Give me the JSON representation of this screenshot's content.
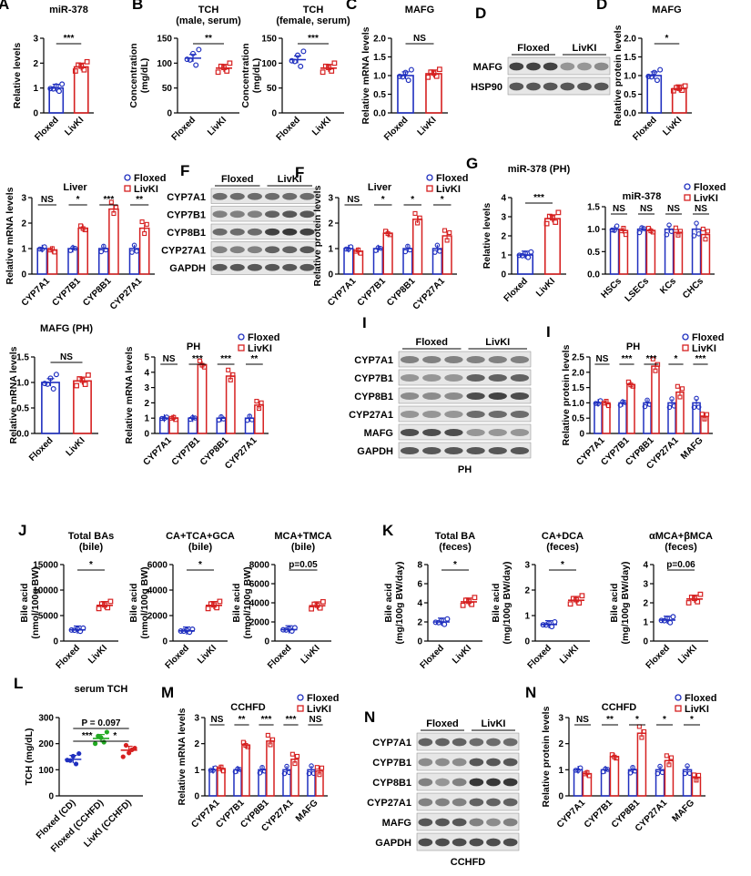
{
  "colors": {
    "floxed": "#1f2fbf",
    "livki": "#d62020",
    "cd": "#1f2fbf",
    "cchfd_floxed": "#22aa22",
    "cchfd_livki": "#d62020"
  },
  "legend": {
    "floxed": "Floxed",
    "livki": "LivKI"
  },
  "chart_data": [
    {
      "id": "A",
      "label": "A",
      "type": "bar",
      "title": "miR-378",
      "ylabel": "Relative levels",
      "ylim": [
        0,
        3
      ],
      "yticks": [
        "0",
        "1",
        "2",
        "3"
      ],
      "categories": [
        "Floxed",
        "LivKI"
      ],
      "values": [
        1.0,
        1.85
      ],
      "sig": [
        {
          "text": "***",
          "a": 0,
          "b": 1
        }
      ]
    },
    {
      "id": "B1",
      "label": "B",
      "type": "scatter",
      "title": "TCH\n(male, serum)",
      "ylabel": "Concentration\n(mg/dL)",
      "ylim": [
        0,
        150
      ],
      "yticks": [
        "0",
        "50",
        "100",
        "150"
      ],
      "categories": [
        "Floxed",
        "LivKI"
      ],
      "values": [
        110,
        90
      ],
      "sig": [
        {
          "text": "**",
          "a": 0,
          "b": 1
        }
      ]
    },
    {
      "id": "B2",
      "type": "scatter",
      "title": "TCH\n(female, serum)",
      "ylabel": "Concentration\n(mg/dL)",
      "ylim": [
        0,
        150
      ],
      "yticks": [
        "0",
        "50",
        "100",
        "150"
      ],
      "categories": [
        "Floxed",
        "LivKI"
      ],
      "values": [
        107,
        90
      ],
      "sig": [
        {
          "text": "***",
          "a": 0,
          "b": 1
        }
      ]
    },
    {
      "id": "C",
      "label": "C",
      "type": "bar",
      "title": "MAFG",
      "ylabel": "Relative mRNA levels",
      "ylim": [
        0,
        2.0
      ],
      "yticks": [
        "0.0",
        "0.5",
        "1.0",
        "1.5",
        "2.0"
      ],
      "categories": [
        "Floxed",
        "LivKI"
      ],
      "values": [
        1.0,
        1.05
      ],
      "sig": [
        {
          "text": "NS",
          "a": 0,
          "b": 1
        }
      ]
    },
    {
      "id": "D",
      "label": "D",
      "type": "bar",
      "title": "MAFG",
      "ylabel": "Relative protein levels",
      "ylim": [
        0,
        2.0
      ],
      "yticks": [
        "0.0",
        "0.5",
        "1.0",
        "1.5",
        "2.0"
      ],
      "categories": [
        "Floxed",
        "LivKI"
      ],
      "values": [
        1.0,
        0.65
      ],
      "sig": [
        {
          "text": "*",
          "a": 0,
          "b": 1
        }
      ]
    },
    {
      "id": "E",
      "label": "E",
      "type": "bar",
      "title": "Liver",
      "ylabel": "Relative mRNA levels",
      "ylim": [
        0,
        3
      ],
      "yticks": [
        "0",
        "1",
        "2",
        "3"
      ],
      "categories": [
        "CYP7A1",
        "CYP7B1",
        "CYP8B1",
        "CYP27A1"
      ],
      "series": [
        {
          "name": "Floxed",
          "values": [
            1.0,
            1.0,
            1.0,
            1.0
          ]
        },
        {
          "name": "LivKI",
          "values": [
            0.95,
            1.8,
            2.55,
            1.8
          ]
        }
      ],
      "sig": [
        "NS",
        "*",
        "***",
        "**"
      ]
    },
    {
      "id": "F",
      "label": "F",
      "type": "bar",
      "title": "Liver",
      "ylabel": "Relative protein levels",
      "ylim": [
        0,
        3
      ],
      "yticks": [
        "0",
        "1",
        "2",
        "3"
      ],
      "categories": [
        "CYP7A1",
        "CYP7B1",
        "CYP8B1",
        "CYP27A1"
      ],
      "series": [
        {
          "name": "Floxed",
          "values": [
            1.0,
            1.0,
            1.0,
            1.0
          ]
        },
        {
          "name": "LivKI",
          "values": [
            0.9,
            1.6,
            2.15,
            1.5
          ]
        }
      ],
      "sig": [
        "NS",
        "*",
        "*",
        "*"
      ]
    },
    {
      "id": "G1",
      "label": "G",
      "type": "bar",
      "title": "miR-378 (PH)",
      "ylabel": "Relative levels",
      "ylim": [
        0,
        4
      ],
      "yticks": [
        "0",
        "1",
        "2",
        "3",
        "4"
      ],
      "categories": [
        "Floxed",
        "LivKI"
      ],
      "values": [
        1.0,
        2.9
      ],
      "sig": [
        {
          "text": "***",
          "a": 0,
          "b": 1
        }
      ]
    },
    {
      "id": "G2",
      "type": "bar",
      "title": "miR-378",
      "ylabel": "",
      "ylim": [
        0,
        1.5
      ],
      "yticks": [
        "0.0",
        "0.5",
        "1.0",
        "1.5"
      ],
      "categories": [
        "HSCs",
        "LSECs",
        "KCs",
        "CHCs"
      ],
      "series": [
        {
          "name": "Floxed",
          "values": [
            1.0,
            1.0,
            1.0,
            1.0
          ]
        },
        {
          "name": "LivKI",
          "values": [
            0.97,
            0.97,
            0.93,
            0.88
          ]
        }
      ],
      "sig": [
        "NS",
        "NS",
        "NS",
        "NS"
      ]
    },
    {
      "id": "H1",
      "label": "H",
      "type": "bar",
      "title": "MAFG (PH)",
      "ylabel": "Relative mRNA levels",
      "ylim": [
        0,
        1.5
      ],
      "yticks": [
        "0.0",
        "0.5",
        "1.0",
        "1.5"
      ],
      "categories": [
        "Floxed",
        "LivKI"
      ],
      "values": [
        1.0,
        1.03
      ],
      "sig": [
        {
          "text": "NS",
          "a": 0,
          "b": 1
        }
      ]
    },
    {
      "id": "H2",
      "type": "bar",
      "title": "PH",
      "ylabel": "Relative mRNA levels",
      "ylim": [
        0,
        5
      ],
      "yticks": [
        "0",
        "1",
        "2",
        "3",
        "4",
        "5"
      ],
      "categories": [
        "CYP7A1",
        "CYP7B1",
        "CYP8B1",
        "CYP27A1"
      ],
      "series": [
        {
          "name": "Floxed",
          "values": [
            1.0,
            1.0,
            1.0,
            1.0
          ]
        },
        {
          "name": "LivKI",
          "values": [
            1.0,
            4.5,
            3.75,
            1.85
          ]
        }
      ],
      "sig": [
        "NS",
        "***",
        "***",
        "**"
      ]
    },
    {
      "id": "I",
      "label": "I",
      "type": "bar",
      "title": "PH",
      "ylabel": "Relative protein levels",
      "ylim": [
        0,
        2.5
      ],
      "yticks": [
        "0",
        "0.5",
        "1.0",
        "1.5",
        "2.0",
        "2.5"
      ],
      "categories": [
        "CYP7A1",
        "CYP7B1",
        "CYP8B1",
        "CYP27A1",
        "MAFG"
      ],
      "series": [
        {
          "name": "Floxed",
          "values": [
            1.0,
            1.0,
            1.0,
            1.0,
            1.0
          ]
        },
        {
          "name": "LivKI",
          "values": [
            1.0,
            1.6,
            2.2,
            1.35,
            0.55
          ]
        }
      ],
      "sig": [
        "NS",
        "***",
        "***",
        "*",
        "***"
      ]
    },
    {
      "id": "J1",
      "label": "J",
      "type": "scatter",
      "title": "Total BAs\n(bile)",
      "ylabel": "Bile acid\n(nmol/100g BW)",
      "ylim": [
        0,
        15000
      ],
      "yticks": [
        "0",
        "5000",
        "10000",
        "15000"
      ],
      "categories": [
        "Floxed",
        "LivKI"
      ],
      "values": [
        2200,
        7000
      ],
      "sig": [
        {
          "text": "*",
          "a": 0,
          "b": 1
        }
      ]
    },
    {
      "id": "J2",
      "type": "scatter",
      "title": "CA+TCA+GCA\n(bile)",
      "ylabel": "Bile acid\n(nmol/100g BW)",
      "ylim": [
        0,
        6000
      ],
      "yticks": [
        "0",
        "2000",
        "4000",
        "6000"
      ],
      "categories": [
        "Floxed",
        "LivKI"
      ],
      "values": [
        800,
        2800
      ],
      "sig": [
        {
          "text": "*",
          "a": 0,
          "b": 1
        }
      ]
    },
    {
      "id": "J3",
      "type": "scatter",
      "title": "MCA+TMCA\n(bile)",
      "ylabel": "Bile acid\n(nmol/100g BW)",
      "ylim": [
        0,
        8000
      ],
      "yticks": [
        "0",
        "2000",
        "4000",
        "6000",
        "8000"
      ],
      "categories": [
        "Floxed",
        "LivKI"
      ],
      "values": [
        1200,
        3700
      ],
      "sig": [
        {
          "text": "p=0.05",
          "a": 0,
          "b": 1
        }
      ]
    },
    {
      "id": "K1",
      "label": "K",
      "type": "scatter",
      "title": "Total BA\n(feces)",
      "ylabel": "Bile acid\n(mg/100g BW/day)",
      "ylim": [
        0,
        8
      ],
      "yticks": [
        "0",
        "2",
        "4",
        "6",
        "8"
      ],
      "categories": [
        "Floxed",
        "LivKI"
      ],
      "values": [
        2.0,
        4.1
      ],
      "sig": [
        {
          "text": "*",
          "a": 0,
          "b": 1
        }
      ]
    },
    {
      "id": "K2",
      "type": "scatter",
      "title": "CA+DCA\n(feces)",
      "ylabel": "Bile acid\n(mg/100g BW/day)",
      "ylim": [
        0,
        3
      ],
      "yticks": [
        "0",
        "1",
        "2",
        "3"
      ],
      "categories": [
        "Floxed",
        "LivKI"
      ],
      "values": [
        0.65,
        1.6
      ],
      "sig": [
        {
          "text": "*",
          "a": 0,
          "b": 1
        }
      ]
    },
    {
      "id": "K3",
      "type": "scatter",
      "title": "αMCA+βMCA\n(feces)",
      "ylabel": "Bile acid\n(mg/100g BW/day)",
      "ylim": [
        0,
        4
      ],
      "yticks": [
        "0",
        "1",
        "2",
        "3",
        "4"
      ],
      "categories": [
        "Floxed",
        "LivKI"
      ],
      "values": [
        1.1,
        2.2
      ],
      "sig": [
        {
          "text": "p=0.06",
          "a": 0,
          "b": 1
        }
      ]
    },
    {
      "id": "L",
      "label": "L",
      "type": "scatter",
      "title": "serum TCH",
      "ylabel": "TCH (mg/dL)",
      "ylim": [
        0,
        300
      ],
      "yticks": [
        "0",
        "100",
        "200",
        "300"
      ],
      "categories": [
        "Floxed (CD)",
        "Floxed (CCHFD)",
        "LivKI (CCHFD)"
      ],
      "values": [
        140,
        220,
        175
      ],
      "sig": [
        {
          "text": "***",
          "a": 0,
          "b": 1
        },
        {
          "text": "*",
          "a": 1,
          "b": 2
        },
        {
          "text": "P = 0.097",
          "a": 0,
          "b": 2
        }
      ]
    },
    {
      "id": "M",
      "label": "M",
      "type": "bar",
      "title": "CCHFD",
      "ylabel": "Relative mRNA levels",
      "ylim": [
        0,
        3
      ],
      "yticks": [
        "0",
        "1",
        "2",
        "3"
      ],
      "categories": [
        "CYP7A1",
        "CYP7B1",
        "CYP8B1",
        "CYP27A1",
        "MAFG"
      ],
      "series": [
        {
          "name": "Floxed",
          "values": [
            1.0,
            1.0,
            1.0,
            1.0,
            1.0
          ]
        },
        {
          "name": "LivKI",
          "values": [
            1.05,
            1.95,
            2.1,
            1.4,
            0.95
          ]
        }
      ],
      "sig": [
        "NS",
        "**",
        "***",
        "***",
        "NS"
      ]
    },
    {
      "id": "N",
      "label": "N",
      "type": "bar",
      "title": "CCHFD",
      "ylabel": "Relative protein levels",
      "ylim": [
        0,
        3
      ],
      "yticks": [
        "0",
        "1",
        "2",
        "3"
      ],
      "categories": [
        "CYP7A1",
        "CYP7B1",
        "CYP8B1",
        "CYP27A1",
        "MAFG"
      ],
      "series": [
        {
          "name": "Floxed",
          "values": [
            1.0,
            1.0,
            1.0,
            1.0,
            1.0
          ]
        },
        {
          "name": "LivKI",
          "values": [
            0.85,
            1.5,
            2.4,
            1.35,
            0.7
          ]
        }
      ],
      "sig": [
        "NS",
        "**",
        "*",
        "*",
        "*"
      ]
    }
  ],
  "blots": [
    {
      "id": "blotD",
      "groups": [
        "Floxed",
        "LivKI"
      ],
      "rows": [
        "MAFG",
        "HSP90"
      ],
      "lanes": 6,
      "intens": [
        [
          0.9,
          0.9,
          0.9,
          0.5,
          0.5,
          0.55
        ],
        [
          0.8,
          0.8,
          0.8,
          0.8,
          0.8,
          0.8
        ]
      ]
    },
    {
      "id": "blotF",
      "groups": [
        "Floxed",
        "LivKI"
      ],
      "rows": [
        "CYP7A1",
        "CYP7B1",
        "CYP8B1",
        "CYP27A1",
        "GAPDH"
      ],
      "lanes": 6,
      "intens": [
        [
          0.7,
          0.7,
          0.7,
          0.7,
          0.7,
          0.7
        ],
        [
          0.6,
          0.6,
          0.6,
          0.75,
          0.8,
          0.8
        ],
        [
          0.7,
          0.7,
          0.7,
          0.9,
          0.95,
          0.9
        ],
        [
          0.6,
          0.6,
          0.6,
          0.75,
          0.75,
          0.8
        ],
        [
          0.8,
          0.8,
          0.8,
          0.8,
          0.8,
          0.8
        ]
      ]
    },
    {
      "id": "blotI",
      "groups": [
        "Floxed",
        "LivKI"
      ],
      "rows": [
        "CYP7A1",
        "CYP7B1",
        "CYP8B1",
        "CYP27A1",
        "MAFG",
        "GAPDH"
      ],
      "lanes": 6,
      "caption": "PH",
      "intens": [
        [
          0.6,
          0.6,
          0.6,
          0.6,
          0.6,
          0.6
        ],
        [
          0.5,
          0.5,
          0.5,
          0.75,
          0.75,
          0.75
        ],
        [
          0.55,
          0.55,
          0.55,
          0.85,
          0.9,
          0.85
        ],
        [
          0.5,
          0.5,
          0.5,
          0.7,
          0.7,
          0.7
        ],
        [
          0.85,
          0.85,
          0.85,
          0.5,
          0.5,
          0.5
        ],
        [
          0.8,
          0.8,
          0.8,
          0.8,
          0.8,
          0.8
        ]
      ]
    },
    {
      "id": "blotN",
      "groups": [
        "Floxed",
        "LivKI"
      ],
      "rows": [
        "CYP7A1",
        "CYP7B1",
        "CYP8B1",
        "CYP27A1",
        "MAFG",
        "GAPDH"
      ],
      "lanes": 6,
      "caption": "CCHFD",
      "intens": [
        [
          0.75,
          0.75,
          0.75,
          0.7,
          0.7,
          0.7
        ],
        [
          0.55,
          0.55,
          0.55,
          0.8,
          0.8,
          0.8
        ],
        [
          0.6,
          0.5,
          0.6,
          0.95,
          0.95,
          0.95
        ],
        [
          0.6,
          0.6,
          0.6,
          0.75,
          0.75,
          0.75
        ],
        [
          0.8,
          0.8,
          0.8,
          0.6,
          0.55,
          0.6
        ],
        [
          0.85,
          0.85,
          0.85,
          0.85,
          0.85,
          0.85
        ]
      ]
    }
  ]
}
